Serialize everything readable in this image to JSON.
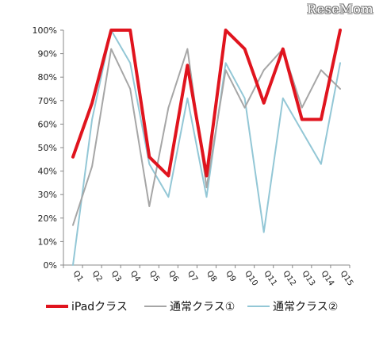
{
  "watermark": "ReseMom",
  "chart_data": {
    "type": "line",
    "categories": [
      "Q1",
      "Q2",
      "Q3",
      "Q4",
      "Q5",
      "Q6",
      "Q7",
      "Q8",
      "Q9",
      "Q10",
      "Q11",
      "Q12",
      "Q13",
      "Q14",
      "Q15"
    ],
    "ylim": [
      0,
      100
    ],
    "yticks": [
      0,
      10,
      20,
      30,
      40,
      50,
      60,
      70,
      80,
      90,
      100
    ],
    "ytick_labels": [
      "0%",
      "10%",
      "20%",
      "30%",
      "40%",
      "50%",
      "60%",
      "70%",
      "80%",
      "90%",
      "100%"
    ],
    "grid": false,
    "legend_position": "bottom",
    "series": [
      {
        "name": "iPadクラス",
        "color": "#e0141e",
        "values": [
          46,
          69,
          100,
          100,
          46,
          38,
          85,
          38,
          100,
          92,
          69,
          92,
          62,
          62,
          100
        ]
      },
      {
        "name": "通常クラス①",
        "color": "#a6a6a6",
        "values": [
          17,
          42,
          92,
          75,
          25,
          67,
          92,
          33,
          83,
          67,
          83,
          92,
          67,
          83,
          75
        ]
      },
      {
        "name": "通常クラス②",
        "color": "#93c7d6",
        "values": [
          0,
          62,
          100,
          86,
          43,
          29,
          71,
          29,
          86,
          71,
          14,
          71,
          57,
          43,
          86
        ]
      }
    ]
  }
}
